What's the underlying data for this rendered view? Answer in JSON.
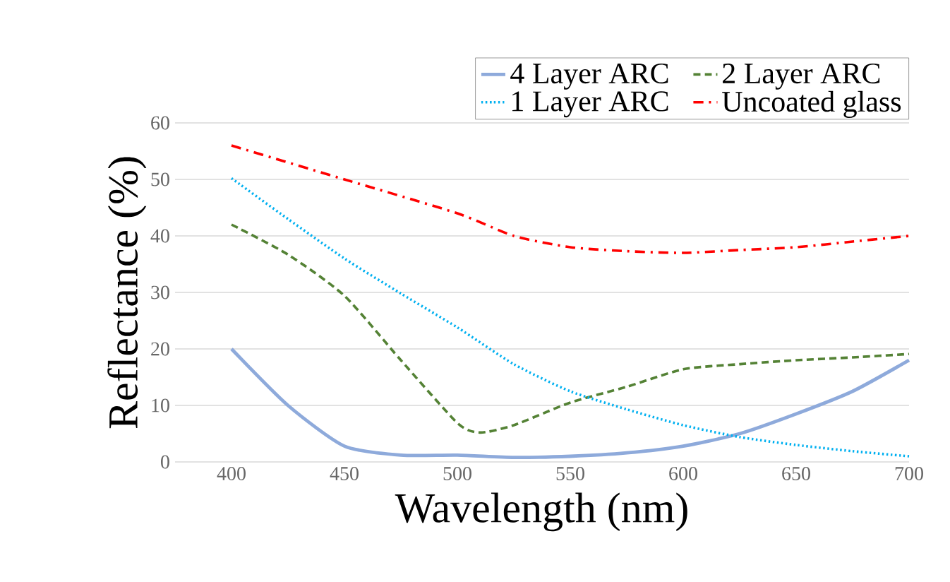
{
  "chart_data": {
    "type": "line",
    "xlabel": "Wavelength (nm)",
    "ylabel": "Reflectance (%)",
    "xlim": [
      375,
      700
    ],
    "xticks": [
      400,
      450,
      500,
      550,
      600,
      650,
      700
    ],
    "ylim": [
      0,
      60
    ],
    "yticks": [
      0,
      10,
      20,
      30,
      40,
      50,
      60
    ],
    "grid": "y",
    "legend": "top right",
    "marker": "none",
    "series": [
      {
        "name": "4 Layer ARC",
        "color": "#8eaadb",
        "line_style": "solid",
        "x": [
          400,
          425,
          450,
          475,
          500,
          525,
          550,
          575,
          600,
          625,
          650,
          675,
          700
        ],
        "values": [
          20,
          10,
          2.8,
          1.2,
          1.2,
          0.8,
          1,
          1.6,
          2.8,
          5,
          8.5,
          12.5,
          18
        ]
      },
      {
        "name": "2 Layer ARC",
        "color": "#548235",
        "line_style": "dashed",
        "x": [
          400,
          425,
          450,
          475,
          500,
          510,
          525,
          550,
          575,
          600,
          625,
          650,
          675,
          700
        ],
        "values": [
          42,
          36.7,
          29.4,
          18,
          6.9,
          5.2,
          6.5,
          10.5,
          13.3,
          16.4,
          17.3,
          18,
          18.5,
          19.1
        ]
      },
      {
        "name": "1 Layer ARC",
        "color": "#00b0f0",
        "line_style": "dotted",
        "x": [
          400,
          425,
          450,
          475,
          500,
          525,
          550,
          575,
          600,
          625,
          650,
          675,
          700
        ],
        "values": [
          50.2,
          43,
          36,
          29.8,
          23.8,
          17.3,
          12.5,
          9.3,
          6.5,
          4.4,
          3,
          1.9,
          1
        ]
      },
      {
        "name": "Uncoated glass",
        "color": "#ff0000",
        "line_style": "dashdot",
        "x": [
          400,
          450,
          500,
          525,
          550,
          575,
          600,
          625,
          650,
          675,
          700
        ],
        "values": [
          56,
          50,
          44,
          40,
          38,
          37.3,
          37,
          37.5,
          38,
          39,
          40
        ]
      }
    ]
  }
}
